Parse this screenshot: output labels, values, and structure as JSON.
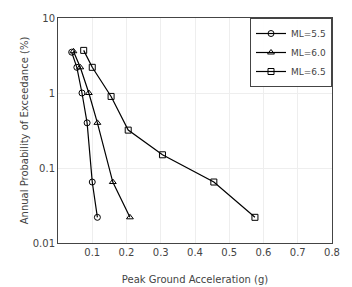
{
  "chart_data": {
    "type": "line",
    "xlabel": "Peak Ground Acceleration (g)",
    "ylabel": "Annual Probability of Exceedance (%)",
    "series": [
      {
        "name": "ML=5.5",
        "color": "#000000",
        "marker": "circle",
        "x": [
          0.04,
          0.055,
          0.07,
          0.085,
          0.1,
          0.115
        ],
        "values": [
          3.5,
          2.2,
          1.0,
          0.4,
          0.065,
          0.022
        ]
      },
      {
        "name": "ML=6.0",
        "color": "#000000",
        "marker": "triangle",
        "x": [
          0.045,
          0.065,
          0.09,
          0.115,
          0.16,
          0.21
        ],
        "values": [
          3.6,
          2.2,
          1.0,
          0.4,
          0.065,
          0.022
        ]
      },
      {
        "name": "ML=6.5",
        "color": "#000000",
        "marker": "square",
        "x": [
          0.075,
          0.1,
          0.155,
          0.205,
          0.305,
          0.455,
          0.575
        ],
        "values": [
          3.7,
          2.2,
          0.9,
          0.32,
          0.15,
          0.065,
          0.022
        ]
      }
    ],
    "xlim": [
      0.0,
      0.8
    ],
    "ylim": [
      0.01,
      10
    ],
    "xticks": [
      0.1,
      0.2,
      0.3,
      0.4,
      0.5,
      0.6,
      0.7,
      0.8
    ],
    "yticks": [
      0.01,
      0.1,
      1,
      10
    ],
    "log": "y",
    "grid": true,
    "legend": "upper right"
  }
}
